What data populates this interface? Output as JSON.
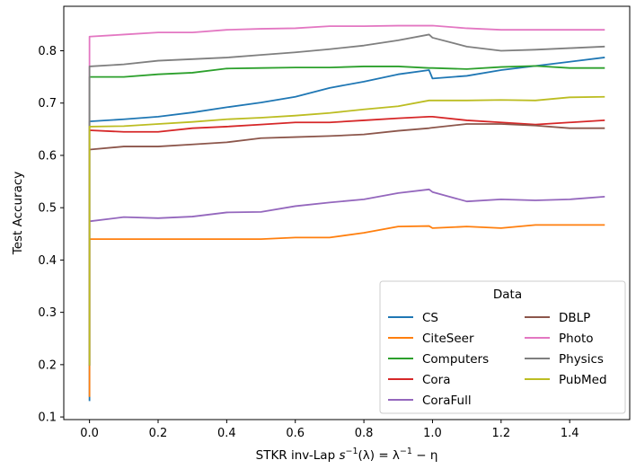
{
  "chart_data": {
    "type": "line",
    "title": "",
    "xlabel": "STKR inv-Lap s⁻¹(λ) = λ⁻¹ − η",
    "xlabel_parts": {
      "prefix": "STKR inv-Lap ",
      "s": "s",
      "sup1": "−1",
      "mid": "(λ) = λ",
      "sup2": "−1",
      "suffix": " − η"
    },
    "ylabel": "Test Accuracy",
    "xlim": [
      -0.075,
      1.575
    ],
    "ylim": [
      0.095,
      0.885
    ],
    "xticks": [
      0.0,
      0.2,
      0.4,
      0.6,
      0.8,
      1.0,
      1.2,
      1.4
    ],
    "xtick_labels": [
      "0.0",
      "0.2",
      "0.4",
      "0.6",
      "0.8",
      "1.0",
      "1.2",
      "1.4"
    ],
    "yticks": [
      0.1,
      0.2,
      0.3,
      0.4,
      0.5,
      0.6,
      0.7,
      0.8
    ],
    "ytick_labels": [
      "0.1",
      "0.2",
      "0.3",
      "0.4",
      "0.5",
      "0.6",
      "0.7",
      "0.8"
    ],
    "grid": false,
    "legend": {
      "title": "Data",
      "placement": "lower-right",
      "columns": 2
    },
    "series": [
      {
        "name": "CS",
        "color": "#1f77b4",
        "x": [
          0.0,
          0.0,
          0.1,
          0.2,
          0.3,
          0.4,
          0.5,
          0.6,
          0.7,
          0.8,
          0.9,
          0.99,
          1.0,
          1.1,
          1.2,
          1.3,
          1.4,
          1.5
        ],
        "y": [
          0.132,
          0.665,
          0.669,
          0.674,
          0.682,
          0.692,
          0.701,
          0.712,
          0.729,
          0.741,
          0.755,
          0.763,
          0.747,
          0.752,
          0.763,
          0.771,
          0.779,
          0.787
        ]
      },
      {
        "name": "CiteSeer",
        "color": "#ff7f0e",
        "x": [
          0.0,
          0.0,
          0.1,
          0.2,
          0.3,
          0.4,
          0.5,
          0.6,
          0.7,
          0.8,
          0.9,
          0.99,
          1.0,
          1.1,
          1.2,
          1.3,
          1.4,
          1.5
        ],
        "y": [
          0.14,
          0.44,
          0.44,
          0.44,
          0.44,
          0.44,
          0.44,
          0.443,
          0.443,
          0.452,
          0.464,
          0.465,
          0.461,
          0.464,
          0.461,
          0.467,
          0.467,
          0.467
        ]
      },
      {
        "name": "Computers",
        "color": "#2ca02c",
        "x": [
          0.0,
          0.0,
          0.1,
          0.2,
          0.3,
          0.4,
          0.5,
          0.6,
          0.7,
          0.8,
          0.9,
          0.99,
          1.0,
          1.1,
          1.2,
          1.3,
          1.4,
          1.5
        ],
        "y": [
          0.2,
          0.75,
          0.75,
          0.755,
          0.758,
          0.766,
          0.767,
          0.768,
          0.768,
          0.77,
          0.77,
          0.767,
          0.767,
          0.765,
          0.769,
          0.771,
          0.767,
          0.767
        ]
      },
      {
        "name": "Cora",
        "color": "#d62728",
        "x": [
          0.0,
          0.0,
          0.1,
          0.2,
          0.3,
          0.4,
          0.5,
          0.6,
          0.7,
          0.8,
          0.9,
          0.99,
          1.0,
          1.1,
          1.2,
          1.3,
          1.4,
          1.5
        ],
        "y": [
          0.2,
          0.648,
          0.645,
          0.645,
          0.652,
          0.655,
          0.659,
          0.663,
          0.663,
          0.667,
          0.671,
          0.674,
          0.674,
          0.667,
          0.663,
          0.659,
          0.663,
          0.667
        ]
      },
      {
        "name": "CoraFull",
        "color": "#9467bd",
        "x": [
          0.0,
          0.0,
          0.1,
          0.2,
          0.3,
          0.4,
          0.5,
          0.6,
          0.7,
          0.8,
          0.9,
          0.99,
          1.0,
          1.1,
          1.2,
          1.3,
          1.4,
          1.5
        ],
        "y": [
          0.2,
          0.474,
          0.482,
          0.48,
          0.483,
          0.491,
          0.492,
          0.503,
          0.51,
          0.516,
          0.528,
          0.535,
          0.53,
          0.512,
          0.516,
          0.514,
          0.516,
          0.521
        ]
      },
      {
        "name": "DBLP",
        "color": "#8c564b",
        "x": [
          0.0,
          0.0,
          0.1,
          0.2,
          0.3,
          0.4,
          0.5,
          0.6,
          0.7,
          0.8,
          0.9,
          0.99,
          1.0,
          1.1,
          1.2,
          1.3,
          1.4,
          1.5
        ],
        "y": [
          0.2,
          0.611,
          0.617,
          0.617,
          0.621,
          0.625,
          0.633,
          0.635,
          0.637,
          0.64,
          0.647,
          0.652,
          0.653,
          0.66,
          0.66,
          0.657,
          0.652,
          0.652
        ]
      },
      {
        "name": "Photo",
        "color": "#e377c2",
        "x": [
          0.0,
          0.0,
          0.1,
          0.2,
          0.3,
          0.4,
          0.5,
          0.6,
          0.7,
          0.8,
          0.9,
          0.99,
          1.0,
          1.1,
          1.2,
          1.3,
          1.4,
          1.5
        ],
        "y": [
          0.2,
          0.827,
          0.831,
          0.835,
          0.835,
          0.84,
          0.842,
          0.843,
          0.847,
          0.847,
          0.848,
          0.848,
          0.848,
          0.843,
          0.84,
          0.84,
          0.84,
          0.84
        ]
      },
      {
        "name": "Physics",
        "color": "#7f7f7f",
        "x": [
          0.0,
          0.0,
          0.1,
          0.2,
          0.3,
          0.4,
          0.5,
          0.6,
          0.7,
          0.8,
          0.9,
          0.99,
          1.0,
          1.1,
          1.2,
          1.3,
          1.4,
          1.5
        ],
        "y": [
          0.2,
          0.77,
          0.774,
          0.781,
          0.784,
          0.787,
          0.792,
          0.797,
          0.803,
          0.81,
          0.82,
          0.831,
          0.825,
          0.808,
          0.8,
          0.802,
          0.805,
          0.808
        ]
      },
      {
        "name": "PubMed",
        "color": "#bcbd22",
        "x": [
          0.0,
          0.0,
          0.1,
          0.2,
          0.3,
          0.4,
          0.5,
          0.6,
          0.7,
          0.8,
          0.9,
          0.99,
          1.0,
          1.1,
          1.2,
          1.3,
          1.4,
          1.5
        ],
        "y": [
          0.2,
          0.655,
          0.656,
          0.66,
          0.664,
          0.669,
          0.672,
          0.676,
          0.681,
          0.688,
          0.694,
          0.705,
          0.705,
          0.705,
          0.706,
          0.705,
          0.711,
          0.712
        ]
      }
    ]
  }
}
